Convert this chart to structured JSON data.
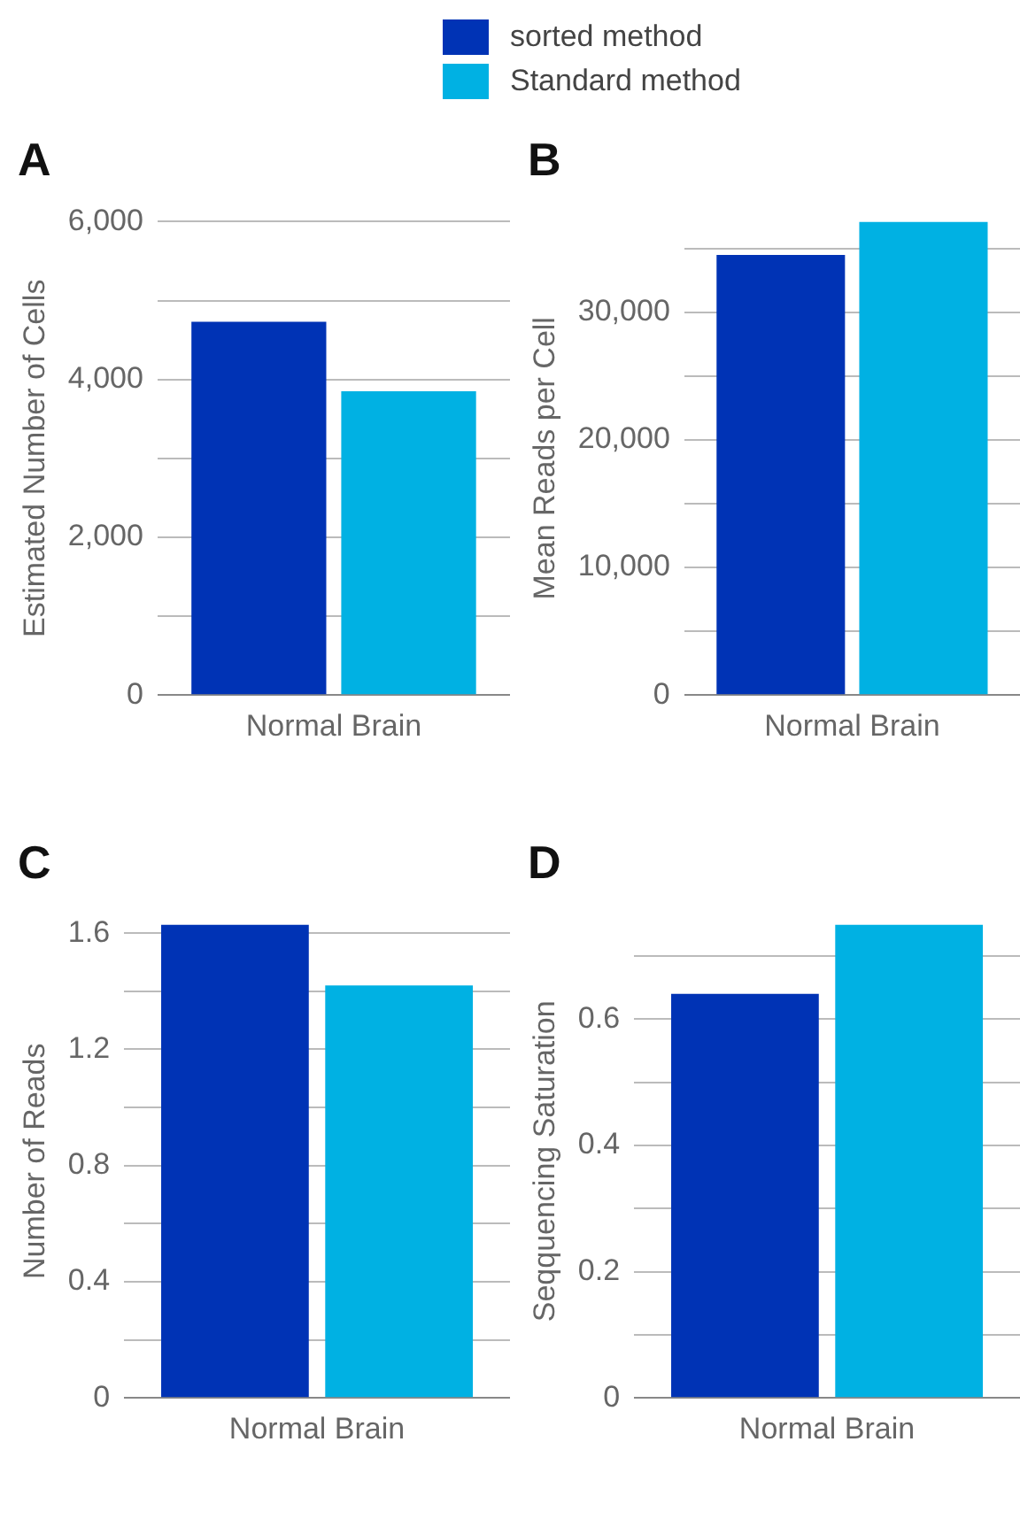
{
  "chart_data": [
    {
      "type": "bar",
      "title": "A",
      "ylabel": "Estimated Number of Cells",
      "categories": [
        "Normal Brain"
      ],
      "legend": "top",
      "grid": "y",
      "series": [
        {
          "name": "sorted method",
          "color": "#0033b5",
          "values": [
            4730
          ]
        },
        {
          "name": "Standard method",
          "color": "#00b1e3",
          "values": [
            3850
          ]
        }
      ],
      "ylim": [
        0,
        6000
      ],
      "yticks": [
        0,
        {
          "value": 1000,
          "label": null
        },
        {
          "value": 2000,
          "label": "2,000"
        },
        {
          "value": 3000,
          "label": null
        },
        {
          "value": 4000,
          "label": "4,000"
        },
        {
          "value": 5000,
          "label": null
        },
        {
          "value": 6000,
          "label": "6,000"
        }
      ]
    },
    {
      "type": "bar",
      "title": "B",
      "ylabel": "Mean Reads per Cell",
      "categories": [
        "Normal Brain"
      ],
      "grid": "y",
      "series": [
        {
          "color": "#0033b5",
          "values": [
            34500
          ]
        },
        {
          "color": "#00b1e3",
          "values": [
            37100
          ]
        }
      ],
      "ylim": [
        0,
        37100
      ],
      "yticks": [
        0,
        {
          "value": 5000,
          "label": null
        },
        {
          "value": 10000,
          "label": "10,000"
        },
        {
          "value": 15000,
          "label": null
        },
        {
          "value": 20000,
          "label": "20,000"
        },
        {
          "value": 25000,
          "label": null
        },
        {
          "value": 30000,
          "label": "30,000"
        },
        {
          "value": 35000,
          "label": null
        }
      ]
    },
    {
      "type": "bar",
      "title": "C",
      "ylabel": "Number of Reads",
      "categories": [
        "Normal Brain"
      ],
      "grid": "y",
      "series": [
        {
          "color": "#0033b5",
          "values": [
            1.63
          ]
        },
        {
          "color": "#00b1e3",
          "values": [
            1.42
          ]
        }
      ],
      "ylim": [
        0,
        1.63
      ],
      "yticks": [
        0,
        {
          "value": 0.2,
          "label": null
        },
        0.4,
        {
          "value": 0.6,
          "label": null
        },
        0.8,
        {
          "value": 1.0,
          "label": null
        },
        1.2,
        {
          "value": 1.4,
          "label": null
        },
        1.6
      ]
    },
    {
      "type": "bar",
      "title": "D",
      "ylabel": "Seqquencing Saturation",
      "categories": [
        "Normal Brain"
      ],
      "grid": "y",
      "series": [
        {
          "color": "#0033b5",
          "values": [
            0.64
          ]
        },
        {
          "color": "#00b1e3",
          "values": [
            0.75
          ]
        }
      ],
      "ylim": [
        0,
        0.75
      ],
      "yticks": [
        0,
        {
          "value": 0.1,
          "label": null
        },
        0.2,
        {
          "value": 0.3,
          "label": null
        },
        0.4,
        {
          "value": 0.5,
          "label": null
        },
        0.6,
        {
          "value": 0.7,
          "label": null
        }
      ]
    }
  ]
}
